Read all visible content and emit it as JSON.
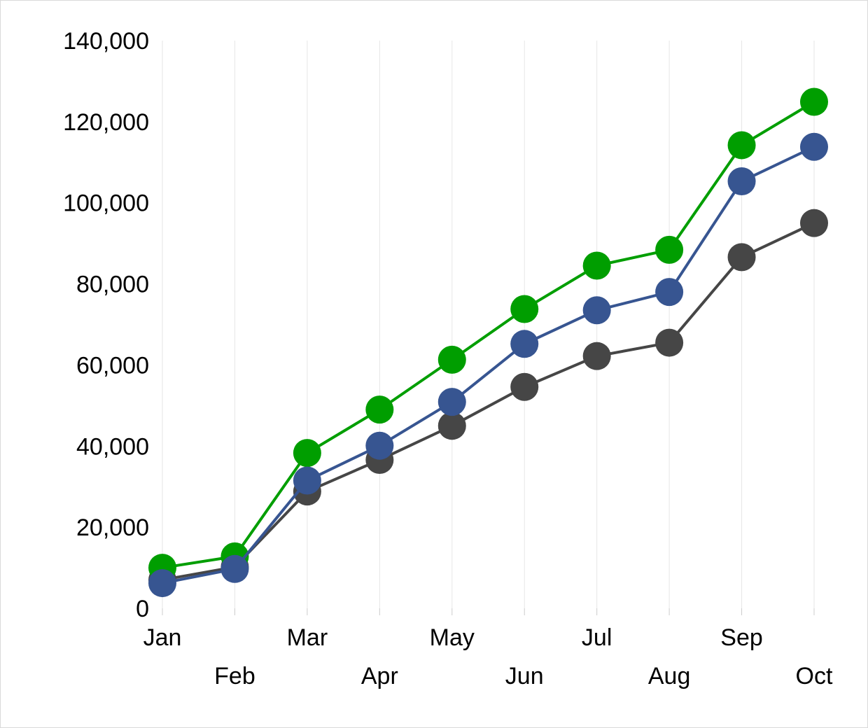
{
  "chart_data": {
    "type": "line",
    "title": "",
    "xlabel": "",
    "ylabel": "",
    "categories": [
      "Jan",
      "Feb",
      "Mar",
      "Apr",
      "May",
      "Jun",
      "Jul",
      "Aug",
      "Sep",
      "Oct"
    ],
    "ylim": [
      0,
      140000
    ],
    "yticks": [
      0,
      20000,
      40000,
      60000,
      80000,
      100000,
      120000,
      140000
    ],
    "ytick_labels": [
      "0",
      "20,000",
      "40,000",
      "60,000",
      "80,000",
      "100,000",
      "120,000",
      "140,000"
    ],
    "grid": "vertical",
    "legend": "none",
    "markers": "circle",
    "series": [
      {
        "color": "#464646",
        "values": [
          7000,
          10200,
          28800,
          36600,
          45000,
          54600,
          62200,
          65500,
          86600,
          95000
        ]
      },
      {
        "color": "#009e00",
        "values": [
          10000,
          12800,
          38300,
          49000,
          61300,
          73800,
          84500,
          88400,
          114200,
          124900
        ]
      },
      {
        "color": "#375591",
        "values": [
          6200,
          9700,
          31500,
          40100,
          50900,
          65200,
          73500,
          78000,
          105300,
          113800
        ]
      }
    ]
  }
}
